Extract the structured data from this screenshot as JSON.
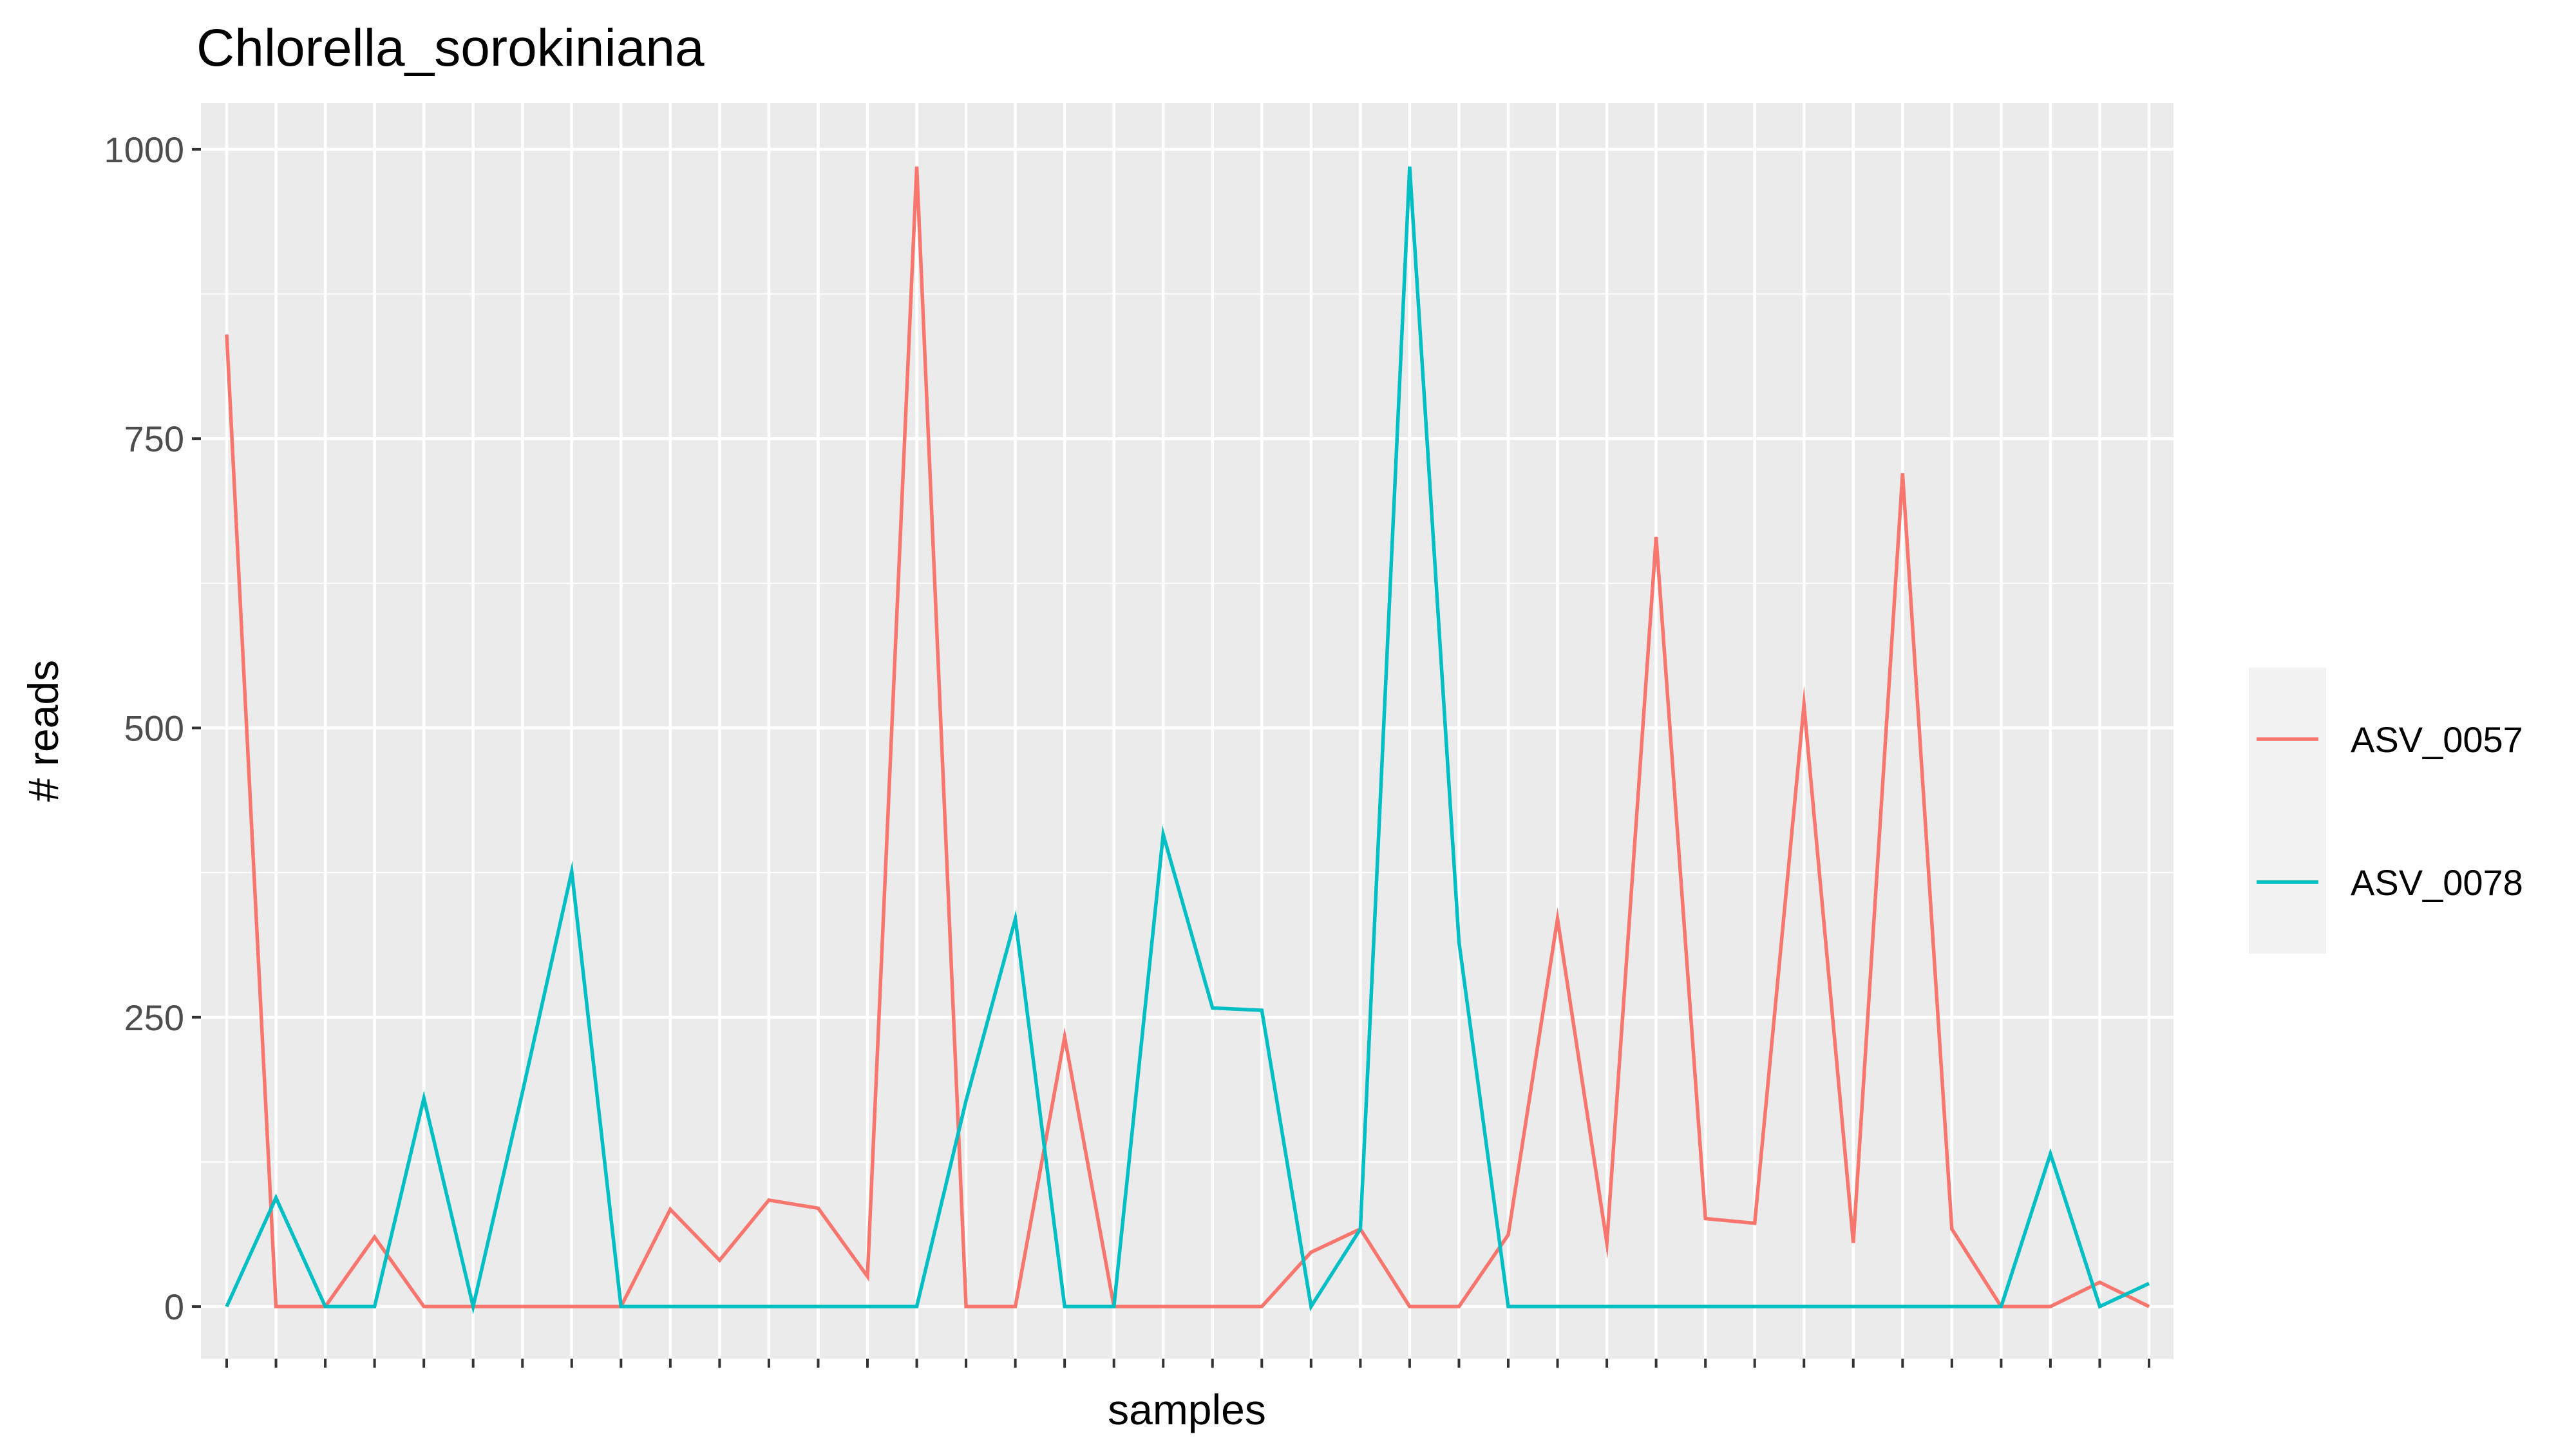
{
  "chart_data": {
    "type": "line",
    "title": "Chlorella_sorokiniana",
    "xlabel": "samples",
    "ylabel": "# reads",
    "ylim": [
      -45,
      1040
    ],
    "yticks": [
      0,
      250,
      500,
      750,
      1000
    ],
    "x_tick_count": 40,
    "x_tick_labels": "none",
    "grid": true,
    "legend_position": "right",
    "series": [
      {
        "name": "ASV_0057",
        "color": "#F8766D",
        "values": [
          840,
          0,
          0,
          60,
          0,
          0,
          0,
          0,
          0,
          84,
          40,
          92,
          85,
          26,
          985,
          0,
          0,
          233,
          0,
          0,
          0,
          0,
          47,
          67,
          0,
          0,
          62,
          335,
          55,
          665,
          76,
          72,
          520,
          55,
          720,
          67,
          0,
          0,
          21,
          0
        ]
      },
      {
        "name": "ASV_0078",
        "color": "#00BFC4",
        "values": [
          0,
          94,
          0,
          0,
          180,
          0,
          185,
          376,
          0,
          0,
          0,
          0,
          0,
          0,
          0,
          178,
          335,
          0,
          0,
          408,
          258,
          256,
          0,
          67,
          985,
          315,
          0,
          0,
          0,
          0,
          0,
          0,
          0,
          0,
          0,
          0,
          0,
          132,
          0,
          20
        ]
      }
    ]
  }
}
